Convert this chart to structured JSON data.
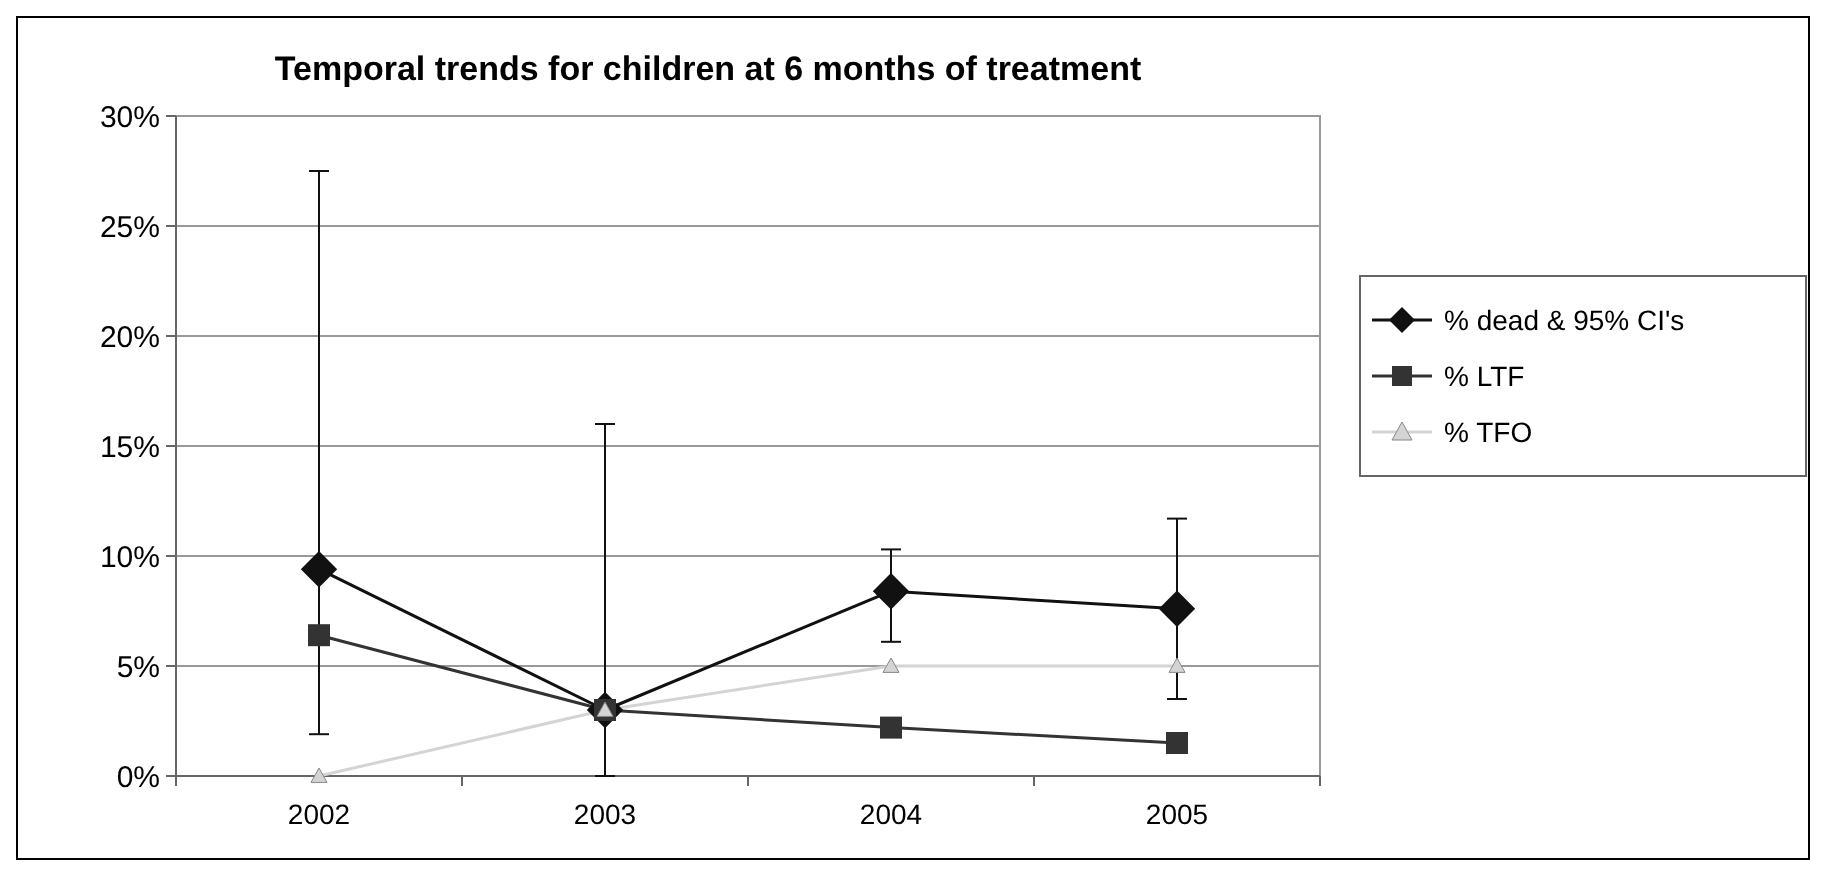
{
  "chart_data": {
    "type": "line",
    "title": "Temporal trends for children at 6 months of treatment",
    "categories": [
      "2002",
      "2003",
      "2004",
      "2005"
    ],
    "ylim": [
      0,
      30
    ],
    "yticks": [
      {
        "value": 0,
        "label": "0%"
      },
      {
        "value": 5,
        "label": "5%"
      },
      {
        "value": 10,
        "label": "10%"
      },
      {
        "value": 15,
        "label": "15%"
      },
      {
        "value": 20,
        "label": "20%"
      },
      {
        "value": 25,
        "label": "25%"
      },
      {
        "value": 30,
        "label": "30%"
      }
    ],
    "grid": "y",
    "legend": "right",
    "series": [
      {
        "name": "% dead & 95% CI's",
        "color": "#111111",
        "marker": "diamond",
        "values": [
          9.4,
          3.0,
          8.4,
          7.6
        ],
        "errors": [
          [
            1.9,
            27.5
          ],
          [
            0,
            16
          ],
          [
            6.1,
            10.3
          ],
          [
            3.5,
            11.7
          ]
        ]
      },
      {
        "name": "% LTF",
        "color": "#333333",
        "marker": "square",
        "values": [
          6.4,
          3.0,
          2.2,
          1.5
        ]
      },
      {
        "name": "% TFO",
        "color": "#d4d4d4",
        "marker": "triangle",
        "values": [
          0,
          3.0,
          5.0,
          5.0
        ]
      }
    ]
  }
}
